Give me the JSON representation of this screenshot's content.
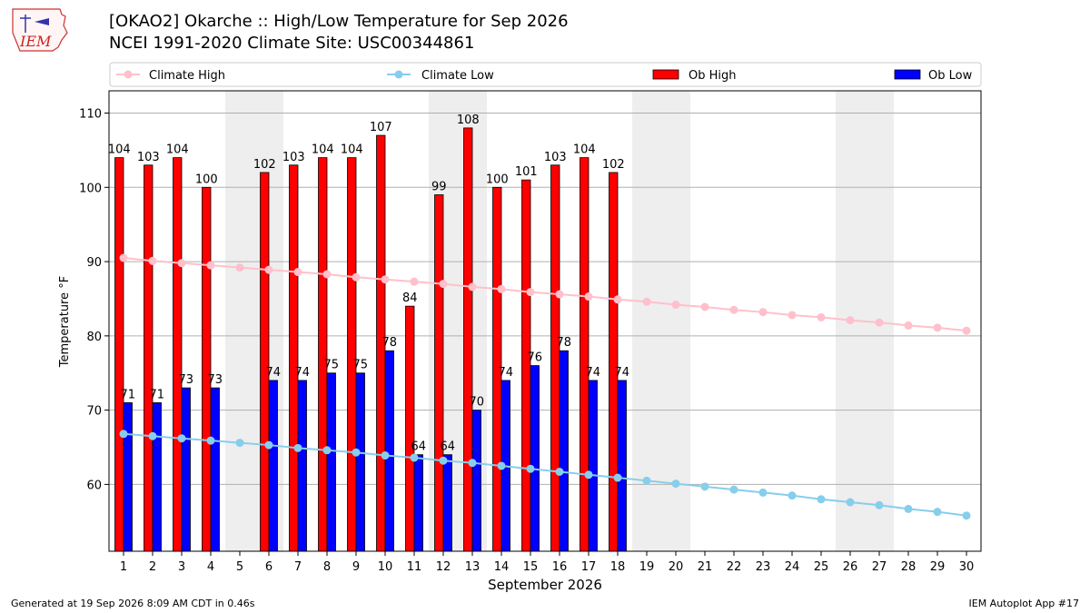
{
  "header": {
    "title_line1": "[OKAO2] Okarche :: High/Low Temperature for Sep 2026",
    "title_line2": "NCEI 1991-2020 Climate Site: USC00344861",
    "logo_text": "IEM"
  },
  "footer": {
    "generated": "Generated at 19 Sep 2026 8:09 AM CDT in 0.46s",
    "app": "IEM Autoplot App #17"
  },
  "chart_data": {
    "type": "bar",
    "xlabel": "September 2026",
    "ylabel": "Temperature °F",
    "ylim": [
      51,
      113
    ],
    "yticks": [
      60,
      70,
      80,
      90,
      100,
      110
    ],
    "xlim": [
      0.5,
      30.5
    ],
    "grid": "horizontal",
    "legend_placement": "top",
    "weekend_shading_days": [
      5,
      6,
      12,
      13,
      19,
      20,
      26,
      27
    ],
    "categories": [
      1,
      2,
      3,
      4,
      5,
      6,
      7,
      8,
      9,
      10,
      11,
      12,
      13,
      14,
      15,
      16,
      17,
      18,
      19,
      20,
      21,
      22,
      23,
      24,
      25,
      26,
      27,
      28,
      29,
      30
    ],
    "series": [
      {
        "name": "Climate High",
        "kind": "line",
        "color": "#ffc0cb",
        "values": [
          90.5,
          90.1,
          89.8,
          89.5,
          89.2,
          88.9,
          88.6,
          88.3,
          87.9,
          87.6,
          87.3,
          87.0,
          86.6,
          86.3,
          85.9,
          85.6,
          85.3,
          84.9,
          84.6,
          84.2,
          83.9,
          83.5,
          83.2,
          82.8,
          82.5,
          82.1,
          81.8,
          81.4,
          81.1,
          80.7
        ]
      },
      {
        "name": "Climate Low",
        "kind": "line",
        "color": "#87ceeb",
        "values": [
          66.8,
          66.5,
          66.2,
          65.9,
          65.6,
          65.3,
          64.9,
          64.6,
          64.3,
          63.9,
          63.6,
          63.2,
          62.9,
          62.5,
          62.1,
          61.7,
          61.3,
          60.9,
          60.5,
          60.1,
          59.7,
          59.3,
          58.9,
          58.5,
          58.0,
          57.6,
          57.2,
          56.7,
          56.3,
          55.8
        ]
      },
      {
        "name": "Ob High",
        "kind": "bar",
        "color": "#ff0000",
        "values": [
          104,
          103,
          104,
          100,
          null,
          102,
          103,
          104,
          104,
          107,
          84,
          99,
          108,
          100,
          101,
          103,
          104,
          102,
          null,
          null,
          null,
          null,
          null,
          null,
          null,
          null,
          null,
          null,
          null,
          null
        ]
      },
      {
        "name": "Ob Low",
        "kind": "bar",
        "color": "#0000ff",
        "values": [
          71,
          71,
          73,
          73,
          null,
          74,
          74,
          75,
          75,
          78,
          64,
          64,
          70,
          74,
          76,
          78,
          74,
          74,
          null,
          null,
          null,
          null,
          null,
          null,
          null,
          null,
          null,
          null,
          null,
          null
        ]
      }
    ]
  }
}
